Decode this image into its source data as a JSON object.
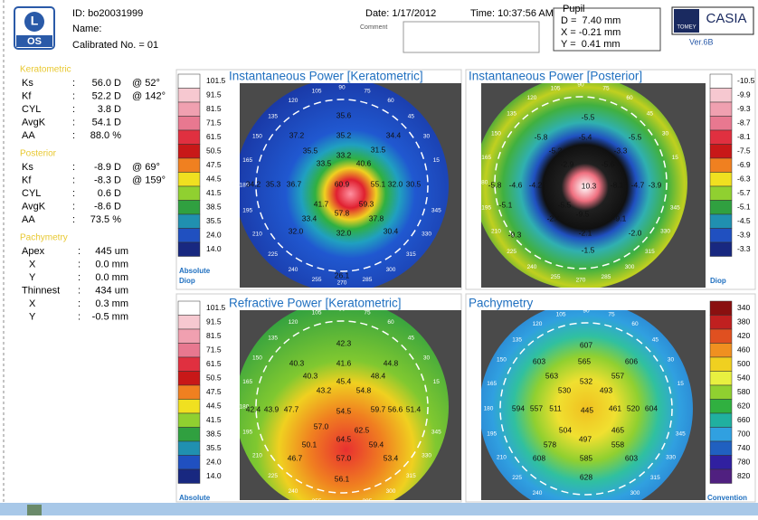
{
  "header": {
    "eye_letter": "L",
    "eye": "OS",
    "id": "ID: bo20031999",
    "name": "Name:",
    "calibrated": "Calibrated No. = 01",
    "date": "Date: 1/17/2012",
    "time": "Time: 10:37:56 AM",
    "comment": "Comment",
    "pupil": {
      "title": "Pupil",
      "rows": [
        "D =  7.40 mm",
        "X = -0.21 mm",
        "Y =  0.41 mm"
      ]
    },
    "brand": "TOMEY",
    "product": "CASIA",
    "version": "Ver.6B"
  },
  "summary": {
    "separator": ":",
    "sections": [
      {
        "title": "Keratometric",
        "rows": [
          {
            "label": "Ks",
            "value": "56.0 D",
            "axis": "@ 52°"
          },
          {
            "label": "Kf",
            "value": "52.2 D",
            "axis": "@ 142°"
          },
          {
            "label": "CYL",
            "value": "3.8 D"
          },
          {
            "label": "AvgK",
            "value": "54.1 D"
          },
          {
            "label": "AA",
            "value": "88.0 %"
          }
        ]
      },
      {
        "title": "Posterior",
        "rows": [
          {
            "label": "Ks",
            "value": "-8.9 D",
            "axis": "@ 69°"
          },
          {
            "label": "Kf",
            "value": "-8.3 D",
            "axis": "@ 159°"
          },
          {
            "label": "CYL",
            "value": "0.6 D"
          },
          {
            "label": "AvgK",
            "value": "-8.6 D"
          },
          {
            "label": "AA",
            "value": "73.5 %"
          }
        ]
      },
      {
        "title": "Pachymetry",
        "rows": [
          {
            "label": "Apex",
            "value": "445 um"
          },
          {
            "label": "X",
            "value": "0.0 mm"
          },
          {
            "label": "Y",
            "value": "0.0 mm"
          },
          {
            "label": "Thinnest",
            "value": "434 um"
          },
          {
            "label": "X",
            "value": "0.3 mm"
          },
          {
            "label": "Y",
            "value": "-0.5 mm"
          }
        ]
      }
    ]
  },
  "angle_labels": [
    "15",
    "30",
    "45",
    "60",
    "75",
    "90",
    "105",
    "120",
    "135",
    "150",
    "165",
    "180",
    "195",
    "210",
    "225",
    "240",
    "255",
    "270",
    "285",
    "300",
    "315",
    "330",
    "345"
  ],
  "panels": [
    {
      "title": "Instantaneous Power [Keratometric]",
      "captions": [
        "Absolute",
        "Diop"
      ],
      "scale": [
        "101.5",
        "91.5",
        "81.5",
        "71.5",
        "61.5",
        "50.5",
        "47.5",
        "44.5",
        "41.5",
        "38.5",
        "35.5",
        "24.0",
        "14.0"
      ],
      "colors": [
        "#ffffff",
        "#f6c8d0",
        "#f0a0b0",
        "#e87890",
        "#e03040",
        "#c81818",
        "#f08020",
        "#f0e020",
        "#90d030",
        "#30a040",
        "#2090b0",
        "#2050c0",
        "#182880"
      ],
      "values": [
        "35.6",
        "37.2",
        "35.2",
        "34.4",
        "35.5",
        "33.2",
        "31.5",
        "33.5",
        "40.6",
        "34.2",
        "35.3",
        "36.7",
        "60.9",
        "55.1",
        "32.0",
        "30.5",
        "41.7",
        "59.3",
        "57.8",
        "33.4",
        "37.8",
        "32.0",
        "32.0",
        "30.4",
        "26.1"
      ]
    },
    {
      "title": "Instantaneous Power [Posterior]",
      "captions": [
        "Diop"
      ],
      "scale": [
        "-10.5",
        "-9.9",
        "-9.3",
        "-8.7",
        "-8.1",
        "-7.5",
        "-6.9",
        "-6.3",
        "-5.7",
        "-5.1",
        "-4.5",
        "-3.9",
        "-3.3"
      ],
      "colors": [
        "#ffffff",
        "#f6c8d0",
        "#f0a0b0",
        "#e87890",
        "#e03040",
        "#c81818",
        "#f08020",
        "#f0e020",
        "#90d030",
        "#30a040",
        "#2090b0",
        "#2050c0",
        "#182880"
      ],
      "values": [
        "-5.5",
        "-5.8",
        "-5.4",
        "-5.5",
        "-5.2",
        "-3.3",
        "-2.9",
        "-5.6",
        "-5.8",
        "-4.6",
        "-4.2",
        "10.3",
        "-8.1",
        "-4.7",
        "-3.9",
        "-5.1",
        "-5.5",
        "-9.5",
        "-9.1",
        "-2.4",
        "-9.3",
        "-2.1",
        "-2.0",
        "-1.5"
      ]
    },
    {
      "title": "Refractive Power [Keratometric]",
      "captions": [
        "Absolute"
      ],
      "scale": [
        "101.5",
        "91.5",
        "81.5",
        "71.5",
        "61.5",
        "50.5",
        "47.5",
        "44.5",
        "41.5",
        "38.5",
        "35.5",
        "24.0",
        "14.0"
      ],
      "colors": [
        "#ffffff",
        "#f6c8d0",
        "#f0a0b0",
        "#e87890",
        "#e03040",
        "#c81818",
        "#f08020",
        "#f0e020",
        "#90d030",
        "#30a040",
        "#2090b0",
        "#2050c0",
        "#182880"
      ],
      "values": [
        "42.3",
        "40.3",
        "41.6",
        "44.8",
        "40.3",
        "48.4",
        "45.4",
        "43.2",
        "54.8",
        "42.4",
        "43.9",
        "47.7",
        "54.5",
        "59.7",
        "56.6",
        "51.4",
        "57.0",
        "62.5",
        "64.5",
        "50.1",
        "59.4",
        "46.7",
        "57.0",
        "53.4",
        "56.1"
      ]
    },
    {
      "title": "Pachymetry",
      "captions": [
        "Convention"
      ],
      "scale": [
        "340",
        "380",
        "420",
        "460",
        "500",
        "540",
        "580",
        "620",
        "660",
        "700",
        "740",
        "780",
        "820"
      ],
      "colors": [
        "#8a1010",
        "#c02020",
        "#e05020",
        "#f09020",
        "#f0d020",
        "#e8f040",
        "#90d030",
        "#30b040",
        "#20b0a0",
        "#30a0e0",
        "#2060c0",
        "#3020a0",
        "#502080"
      ],
      "values": [
        "607",
        "603",
        "565",
        "606",
        "563",
        "557",
        "532",
        "530",
        "493",
        "594",
        "557",
        "511",
        "445",
        "461",
        "520",
        "604",
        "504",
        "465",
        "497",
        "578",
        "558",
        "608",
        "585",
        "603",
        "628"
      ]
    }
  ]
}
